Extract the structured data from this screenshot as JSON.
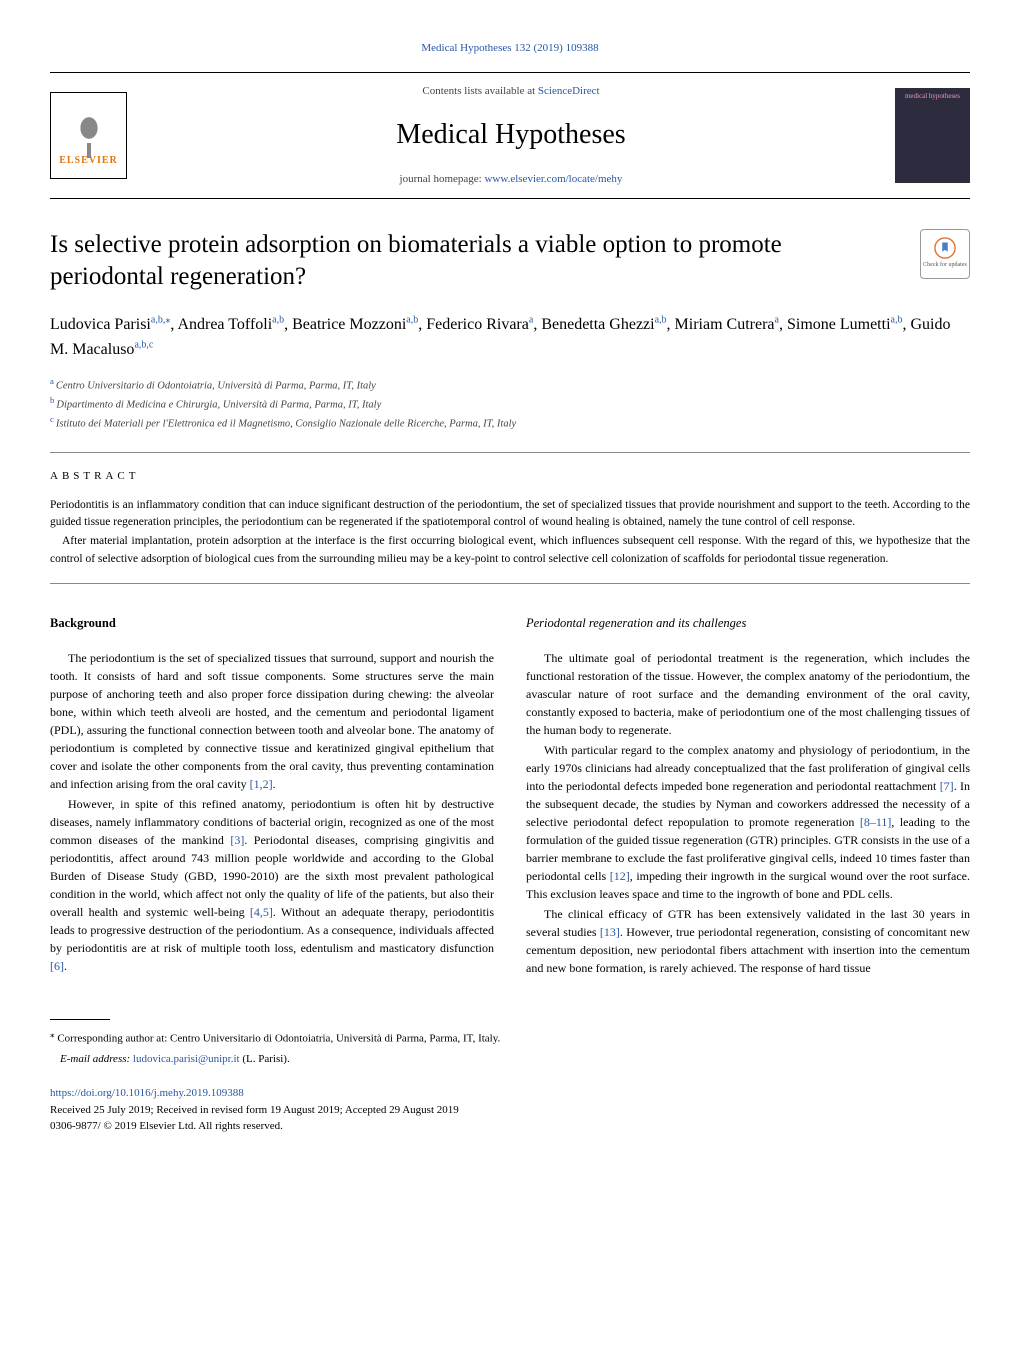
{
  "header": {
    "citation": "Medical Hypotheses 132 (2019) 109388",
    "contents_prefix": "Contents lists available at ",
    "contents_link": "ScienceDirect",
    "journal_name": "Medical Hypotheses",
    "homepage_prefix": "journal homepage: ",
    "homepage_url": "www.elsevier.com/locate/mehy",
    "elsevier_label": "ELSEVIER",
    "cover_text": "medical hypotheses"
  },
  "article": {
    "title": "Is selective protein adsorption on biomaterials a viable option to promote periodontal regeneration?",
    "updates_label": "Check for updates",
    "authors_html": "Ludovica Parisi<sup>a,b,⁎</sup>, Andrea Toffoli<sup>a,b</sup>, Beatrice Mozzoni<sup>a,b</sup>, Federico Rivara<sup>a</sup>, Benedetta Ghezzi<sup>a,b</sup>, Miriam Cutrera<sup>a</sup>, Simone Lumetti<sup>a,b</sup>, Guido M. Macaluso<sup>a,b,c</sup>",
    "affiliations": [
      {
        "marker": "a",
        "text": "Centro Universitario di Odontoiatria, Università di Parma, Parma, IT, Italy"
      },
      {
        "marker": "b",
        "text": "Dipartimento di Medicina e Chirurgia, Università di Parma, Parma, IT, Italy"
      },
      {
        "marker": "c",
        "text": "Istituto dei Materiali per l'Elettronica ed il Magnetismo, Consiglio Nazionale delle Ricerche, Parma, IT, Italy"
      }
    ]
  },
  "abstract": {
    "heading": "ABSTRACT",
    "p1": "Periodontitis is an inflammatory condition that can induce significant destruction of the periodontium, the set of specialized tissues that provide nourishment and support to the teeth. According to the guided tissue regeneration principles, the periodontium can be regenerated if the spatiotemporal control of wound healing is obtained, namely the tune control of cell response.",
    "p2": "After material implantation, protein adsorption at the interface is the first occurring biological event, which influences subsequent cell response. With the regard of this, we hypothesize that the control of selective adsorption of biological cues from the surrounding milieu may be a key-point to control selective cell colonization of scaffolds for periodontal tissue regeneration."
  },
  "body": {
    "left": {
      "heading": "Background",
      "p1": "The periodontium is the set of specialized tissues that surround, support and nourish the tooth. It consists of hard and soft tissue components. Some structures serve the main purpose of anchoring teeth and also proper force dissipation during chewing: the alveolar bone, within which teeth alveoli are hosted, and the cementum and periodontal ligament (PDL), assuring the functional connection between tooth and alveolar bone. The anatomy of periodontium is completed by connective tissue and keratinized gingival epithelium that cover and isolate the other components from the oral cavity, thus preventing contamination and infection arising from the oral cavity ",
      "r1": "[1,2]",
      "p1_end": ".",
      "p2": "However, in spite of this refined anatomy, periodontium is often hit by destructive diseases, namely inflammatory conditions of bacterial origin, recognized as one of the most common diseases of the mankind ",
      "r2": "[3]",
      "p2_mid": ". Periodontal diseases, comprising gingivitis and periodontitis, affect around 743 million people worldwide and according to the Global Burden of Disease Study (GBD, 1990-2010) are the sixth most prevalent pathological condition in the world, which affect not only the quality of life of the patients, but also their overall health and systemic well-being ",
      "r3": "[4,5]",
      "p2_mid2": ". Without an adequate therapy, periodontitis leads to progressive destruction of the periodontium. As a consequence, individuals affected by periodontitis are at risk of multiple tooth loss, edentulism and masticatory disfunction ",
      "r4": "[6]",
      "p2_end": "."
    },
    "right": {
      "heading": "Periodontal regeneration and its challenges",
      "p1": "The ultimate goal of periodontal treatment is the regeneration, which includes the functional restoration of the tissue. However, the complex anatomy of the periodontium, the avascular nature of root surface and the demanding environment of the oral cavity, constantly exposed to bacteria, make of periodontium one of the most challenging tissues of the human body to regenerate.",
      "p2a": "With particular regard to the complex anatomy and physiology of periodontium, in the early 1970s clinicians had already conceptualized that the fast proliferation of gingival cells into the periodontal defects impeded bone regeneration and periodontal reattachment ",
      "r5": "[7]",
      "p2b": ". In the subsequent decade, the studies by Nyman and coworkers addressed the necessity of a selective periodontal defect repopulation to promote regeneration ",
      "r6": "[8–11]",
      "p2c": ", leading to the formulation of the guided tissue regeneration (GTR) principles. GTR consists in the use of a barrier membrane to exclude the fast proliferative gingival cells, indeed 10 times faster than periodontal cells ",
      "r7": "[12]",
      "p2d": ", impeding their ingrowth in the surgical wound over the root surface. This exclusion leaves space and time to the ingrowth of bone and PDL cells.",
      "p3a": "The clinical efficacy of GTR has been extensively validated in the last 30 years in several studies ",
      "r8": "[13]",
      "p3b": ". However, true periodontal regeneration, consisting of concomitant new cementum deposition, new periodontal fibers attachment with insertion into the cementum and new bone formation, is rarely achieved. The response of hard tissue"
    }
  },
  "footer": {
    "corresponding_marker": "⁎",
    "corresponding_text": " Corresponding author at: Centro Universitario di Odontoiatria, Università di Parma, Parma, IT, Italy.",
    "email_label": "E-mail address: ",
    "email": "ludovica.parisi@unipr.it",
    "email_suffix": " (L. Parisi).",
    "doi": "https://doi.org/10.1016/j.mehy.2019.109388",
    "received": "Received 25 July 2019; Received in revised form 19 August 2019; Accepted 29 August 2019",
    "copyright": "0306-9877/ © 2019 Elsevier Ltd. All rights reserved."
  },
  "colors": {
    "link": "#2857a5",
    "elsevier_orange": "#e5750b",
    "cover_bg": "#2c2c3e",
    "cover_pink": "#e89bb8"
  }
}
